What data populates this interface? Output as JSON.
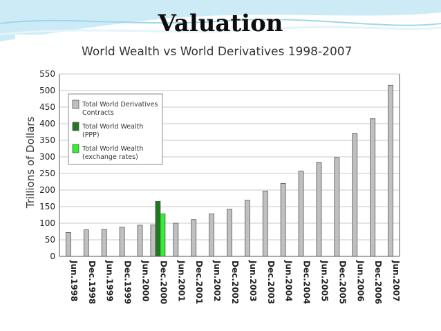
{
  "slide": {
    "title": "Valuation",
    "accent_color": "#c4e7f4"
  },
  "chart_data": {
    "type": "bar",
    "title": "World Wealth vs World Derivatives 1998-2007",
    "xlabel": "",
    "ylabel": "Trillions of Dollars",
    "ylim": [
      0,
      550
    ],
    "yticks": [
      0,
      50,
      100,
      150,
      200,
      250,
      300,
      350,
      400,
      450,
      500,
      550
    ],
    "grid": true,
    "legend_position": "top-left",
    "categories": [
      "Jun.1998",
      "Dec.1998",
      "Jun.1999",
      "Dec.1999",
      "Jun.2000",
      "Dec.2000",
      "Jun.2001",
      "Dec.2001",
      "Jun.2002",
      "Dec.2002",
      "Jun.2003",
      "Dec.2003",
      "Jun.2004",
      "Dec.2004",
      "Jun.2005",
      "Dec.2005",
      "Jun.2006",
      "Dec.2006",
      "Jun.2007"
    ],
    "series": [
      {
        "name": "Total World Derivatives Contracts",
        "name_lines": [
          "Total World Derivatives",
          "Contracts"
        ],
        "color": "#c0c0c0",
        "values": [
          72,
          80,
          81,
          88,
          94,
          95,
          100,
          111,
          128,
          142,
          169,
          197,
          220,
          257,
          283,
          298,
          370,
          415,
          516
        ]
      },
      {
        "name": "Total World Wealth (PPP)",
        "name_lines": [
          "Total World Wealth",
          "(PPP)"
        ],
        "color": "#1e7a1e",
        "values": [
          null,
          null,
          null,
          null,
          null,
          166,
          null,
          null,
          null,
          null,
          null,
          null,
          null,
          null,
          null,
          null,
          null,
          null,
          null
        ]
      },
      {
        "name": "Total World Wealth (exchange rates)",
        "name_lines": [
          "Total World Wealth",
          "(exchange rates)"
        ],
        "color": "#33ee33",
        "values": [
          null,
          null,
          null,
          null,
          null,
          128,
          null,
          null,
          null,
          null,
          null,
          null,
          null,
          null,
          null,
          null,
          null,
          null,
          null
        ]
      }
    ]
  }
}
